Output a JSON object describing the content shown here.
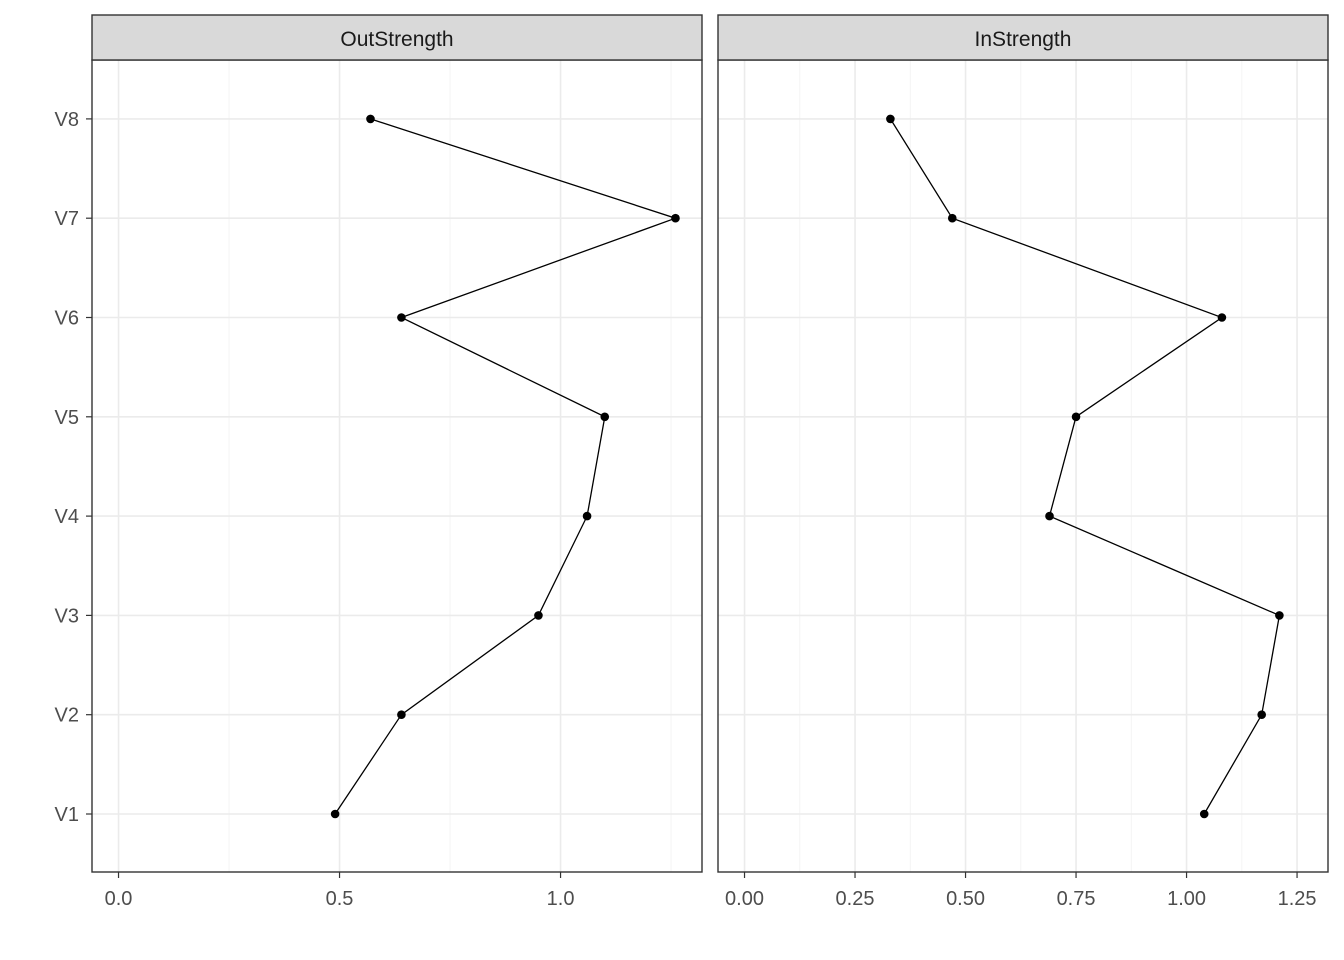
{
  "chart_data": {
    "type": "line",
    "orientation": "horizontal-value-axis",
    "categories": [
      "V1",
      "V2",
      "V3",
      "V4",
      "V5",
      "V6",
      "V7",
      "V8"
    ],
    "legend": "none",
    "grid": true,
    "panels": [
      {
        "name": "OutStrength",
        "values": [
          0.49,
          0.64,
          0.95,
          1.06,
          1.1,
          0.64,
          1.26,
          0.57
        ],
        "xlim": [
          -0.06,
          1.32
        ],
        "xticks": [
          0.0,
          0.5,
          1.0
        ],
        "xtick_labels": [
          "0.0",
          "0.5",
          "1.0"
        ]
      },
      {
        "name": "InStrength",
        "values": [
          1.04,
          1.17,
          1.21,
          0.69,
          0.75,
          1.08,
          0.47,
          0.33
        ],
        "xlim": [
          -0.06,
          1.32
        ],
        "xticks": [
          0.0,
          0.25,
          0.5,
          0.75,
          1.0,
          1.25
        ],
        "xtick_labels": [
          "0.00",
          "0.25",
          "0.50",
          "0.75",
          "1.00",
          "1.25"
        ]
      }
    ]
  }
}
